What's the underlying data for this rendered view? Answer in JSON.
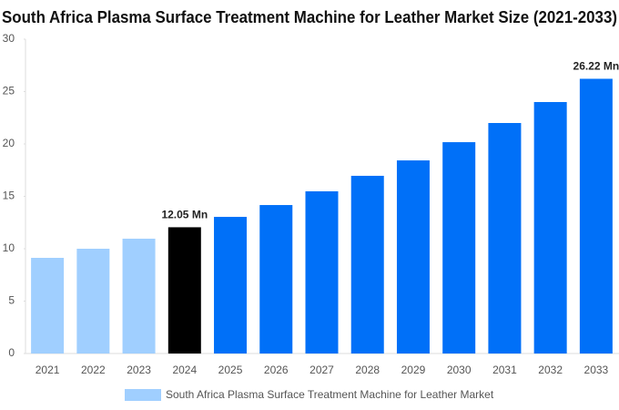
{
  "chart_data": {
    "type": "bar",
    "title": "South Africa Plasma Surface Treatment Machine for Leather Market Size (2021-2033)",
    "categories": [
      "2021",
      "2022",
      "2023",
      "2024",
      "2025",
      "2026",
      "2027",
      "2028",
      "2029",
      "2030",
      "2031",
      "2032",
      "2033"
    ],
    "series": [
      {
        "name": "South Africa Plasma Surface Treatment Machine for Leather Market",
        "color": "#a0cfff",
        "values": [
          9.13,
          10.0,
          10.96,
          12.05,
          13.04,
          14.17,
          15.48,
          16.96,
          18.43,
          20.17,
          22.0,
          24.0,
          26.22
        ],
        "colors": [
          "#a0cfff",
          "#a0cfff",
          "#a0cfff",
          "#000000",
          "#0070f8",
          "#0070f8",
          "#0070f8",
          "#0070f8",
          "#0070f8",
          "#0070f8",
          "#0070f8",
          "#0070f8",
          "#0070f8"
        ],
        "value_labels": [
          null,
          null,
          null,
          "12.05 Mn",
          null,
          null,
          null,
          null,
          null,
          null,
          null,
          null,
          "26.22 Mn"
        ]
      }
    ],
    "ylim": [
      0,
      30
    ],
    "yticks": [
      0,
      5,
      10,
      15,
      20,
      25,
      30
    ],
    "grid": false
  }
}
